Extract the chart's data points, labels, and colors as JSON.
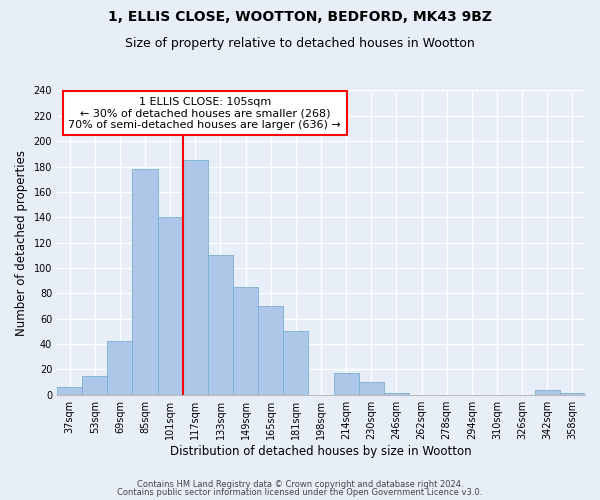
{
  "title": "1, ELLIS CLOSE, WOOTTON, BEDFORD, MK43 9BZ",
  "subtitle": "Size of property relative to detached houses in Wootton",
  "xlabel": "Distribution of detached houses by size in Wootton",
  "ylabel": "Number of detached properties",
  "bar_labels": [
    "37sqm",
    "53sqm",
    "69sqm",
    "85sqm",
    "101sqm",
    "117sqm",
    "133sqm",
    "149sqm",
    "165sqm",
    "181sqm",
    "198sqm",
    "214sqm",
    "230sqm",
    "246sqm",
    "262sqm",
    "278sqm",
    "294sqm",
    "310sqm",
    "326sqm",
    "342sqm",
    "358sqm"
  ],
  "bar_values": [
    6,
    15,
    42,
    178,
    140,
    185,
    110,
    85,
    70,
    50,
    0,
    17,
    10,
    1,
    0,
    0,
    0,
    0,
    0,
    4,
    1
  ],
  "bar_color": "#aec6e8",
  "bar_edge_color": "#7bafd4",
  "vline_x": 4.5,
  "vline_color": "red",
  "annotation_title": "1 ELLIS CLOSE: 105sqm",
  "annotation_line1": "← 30% of detached houses are smaller (268)",
  "annotation_line2": "70% of semi-detached houses are larger (636) →",
  "annotation_box_color": "white",
  "annotation_box_edgecolor": "red",
  "ylim": [
    0,
    240
  ],
  "yticks": [
    0,
    20,
    40,
    60,
    80,
    100,
    120,
    140,
    160,
    180,
    200,
    220,
    240
  ],
  "footer1": "Contains HM Land Registry data © Crown copyright and database right 2024.",
  "footer2": "Contains public sector information licensed under the Open Government Licence v3.0.",
  "bg_color": "#e8eef8",
  "plot_bg_color": "#e8eef8",
  "title_fontsize": 10,
  "subtitle_fontsize": 9,
  "axis_label_fontsize": 8.5,
  "tick_fontsize": 7,
  "annotation_fontsize": 8
}
